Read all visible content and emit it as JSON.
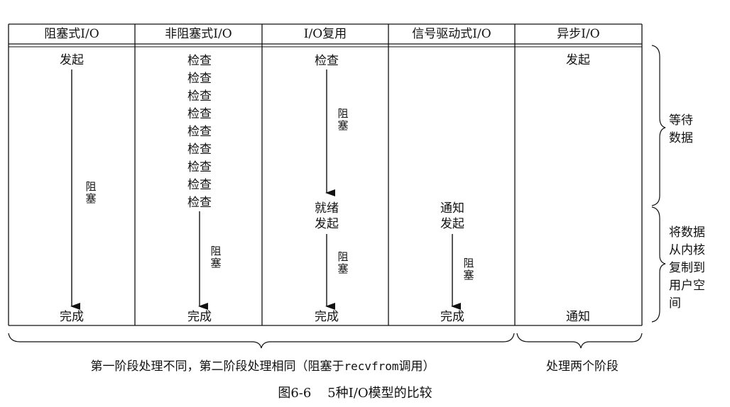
{
  "headers": [
    "阻塞式I/O",
    "非阻塞式I/O",
    "I/O复用",
    "信号驱动式I/O",
    "异步I/O"
  ],
  "blocking_io": {
    "start": "发起",
    "block": "阻塞",
    "end": "完成"
  },
  "nonblocking_io": {
    "checks": [
      "检查",
      "检查",
      "检查",
      "检查",
      "检查",
      "检查",
      "检查",
      "检查",
      "检查"
    ],
    "block": "阻塞",
    "end": "完成"
  },
  "io_multiplexing": {
    "check": "检查",
    "block1": "阻塞",
    "ready": "就绪",
    "start": "发起",
    "block2": "阻塞",
    "end": "完成"
  },
  "signal_driven_io": {
    "notify": "通知",
    "start": "发起",
    "block": "阻塞",
    "end": "完成"
  },
  "async_io": {
    "start": "发起",
    "notify": "通知"
  },
  "right_labels": {
    "wait_line1": "等待",
    "wait_line2": "数据",
    "copy_line1": "将数据",
    "copy_line2": "从内核",
    "copy_line3": "复制到",
    "copy_line4": "用户空",
    "copy_line5": "间"
  },
  "bottom": {
    "left_text_pre": "第一阶段处理不同，第二阶段处理相同（阻塞于",
    "left_text_code": "recvfrom",
    "left_text_post": "调用）",
    "right_text": "处理两个阶段"
  },
  "caption": "图6-6    5种I/O模型的比较"
}
